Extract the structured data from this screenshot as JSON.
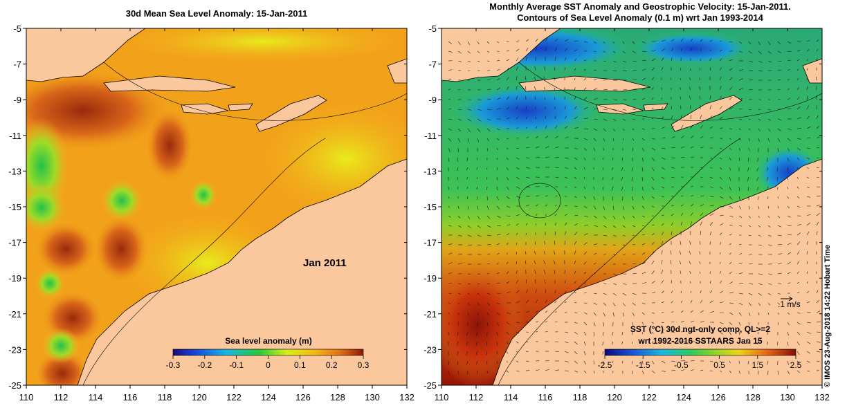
{
  "left_panel": {
    "title": "30d Mean Sea Level Anomaly: 15-Jan-2011",
    "date_label": "Jan 2011",
    "colorbar": {
      "title": "Sea level anomaly (m)",
      "ticks": [
        "-0.3",
        "-0.2",
        "-0.1",
        "0",
        "0.1",
        "0.2",
        "0.3"
      ],
      "range": [
        -0.3,
        0.3
      ]
    }
  },
  "right_panel": {
    "title_line1": "Monthly Average SST Anomaly  and Geostrophic Velocity: 15-Jan-2011.",
    "title_line2": "Contours of Sea Level Anomaly (0.1 m) wrt Jan 1993-2014",
    "vector_scale_label": ".1 m/s",
    "colorbar": {
      "title_line1": "SST (°C) 30d ngt-only comp, QL>=2",
      "title_line2": "wrt 1992-2016 SSTAARS Jan 15",
      "ticks": [
        "-2.5",
        "-1.5",
        "-0.5",
        "0.5",
        "1.5",
        "2.5"
      ],
      "range": [
        -2.5,
        2.5
      ]
    }
  },
  "axes": {
    "lon_ticks": [
      "110",
      "112",
      "114",
      "116",
      "118",
      "120",
      "122",
      "124",
      "126",
      "128",
      "130",
      "132"
    ],
    "lat_ticks": [
      "-5",
      "-7",
      "-9",
      "-11",
      "-13",
      "-15",
      "-17",
      "-19",
      "-21",
      "-23",
      "-25"
    ],
    "lon_range": [
      110,
      132
    ],
    "lat_range": [
      -25,
      -5
    ]
  },
  "credit": "© IMOS 23-Aug-2018 14:22 Hobart Time",
  "colors": {
    "land": "#fbc79d",
    "sla_background": "#f2a21a",
    "sst_background": "#3fbf52"
  }
}
